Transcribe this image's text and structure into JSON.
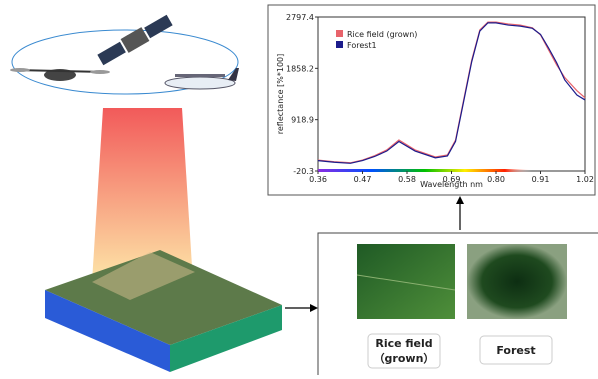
{
  "chart_data": {
    "type": "line",
    "xlabel": "Wavelength nm",
    "ylabel": "reflectance [%*100]",
    "x": [
      0.36,
      0.4,
      0.44,
      0.47,
      0.5,
      0.53,
      0.56,
      0.6,
      0.65,
      0.68,
      0.7,
      0.72,
      0.74,
      0.76,
      0.78,
      0.8,
      0.83,
      0.86,
      0.89,
      0.91,
      0.93,
      0.95,
      0.97,
      1.0,
      1.02
    ],
    "series": [
      {
        "name": "Rice field (grown)",
        "color": "#e8636b",
        "values": [
          180,
          150,
          130,
          180,
          260,
          365,
          547,
          365,
          236,
          273,
          547,
          1280,
          2010,
          2560,
          2705,
          2705,
          2670,
          2650,
          2600,
          2470,
          2195,
          1920,
          1690,
          1450,
          1320
        ]
      },
      {
        "name": "Forest1",
        "color": "#1c1c8c",
        "values": [
          170,
          140,
          120,
          170,
          245,
          345,
          520,
          345,
          220,
          255,
          520,
          1250,
          1980,
          2540,
          2690,
          2690,
          2650,
          2630,
          2590,
          2480,
          2230,
          1960,
          1645,
          1370,
          1280
        ]
      }
    ],
    "xlim": [
      0.36,
      1.02
    ],
    "xticks": [
      0.36,
      0.47,
      0.58,
      0.69,
      {
        "value": 0.8,
        "label": "0.80"
      },
      0.91,
      1.02
    ],
    "ylim": [
      -20.3,
      2797.4
    ],
    "yticks": [
      -20.3,
      918.9,
      1858.2,
      2797.4
    ]
  },
  "labels": {
    "rice": [
      "Rice field",
      "（grown）"
    ],
    "forest": "Forest"
  }
}
